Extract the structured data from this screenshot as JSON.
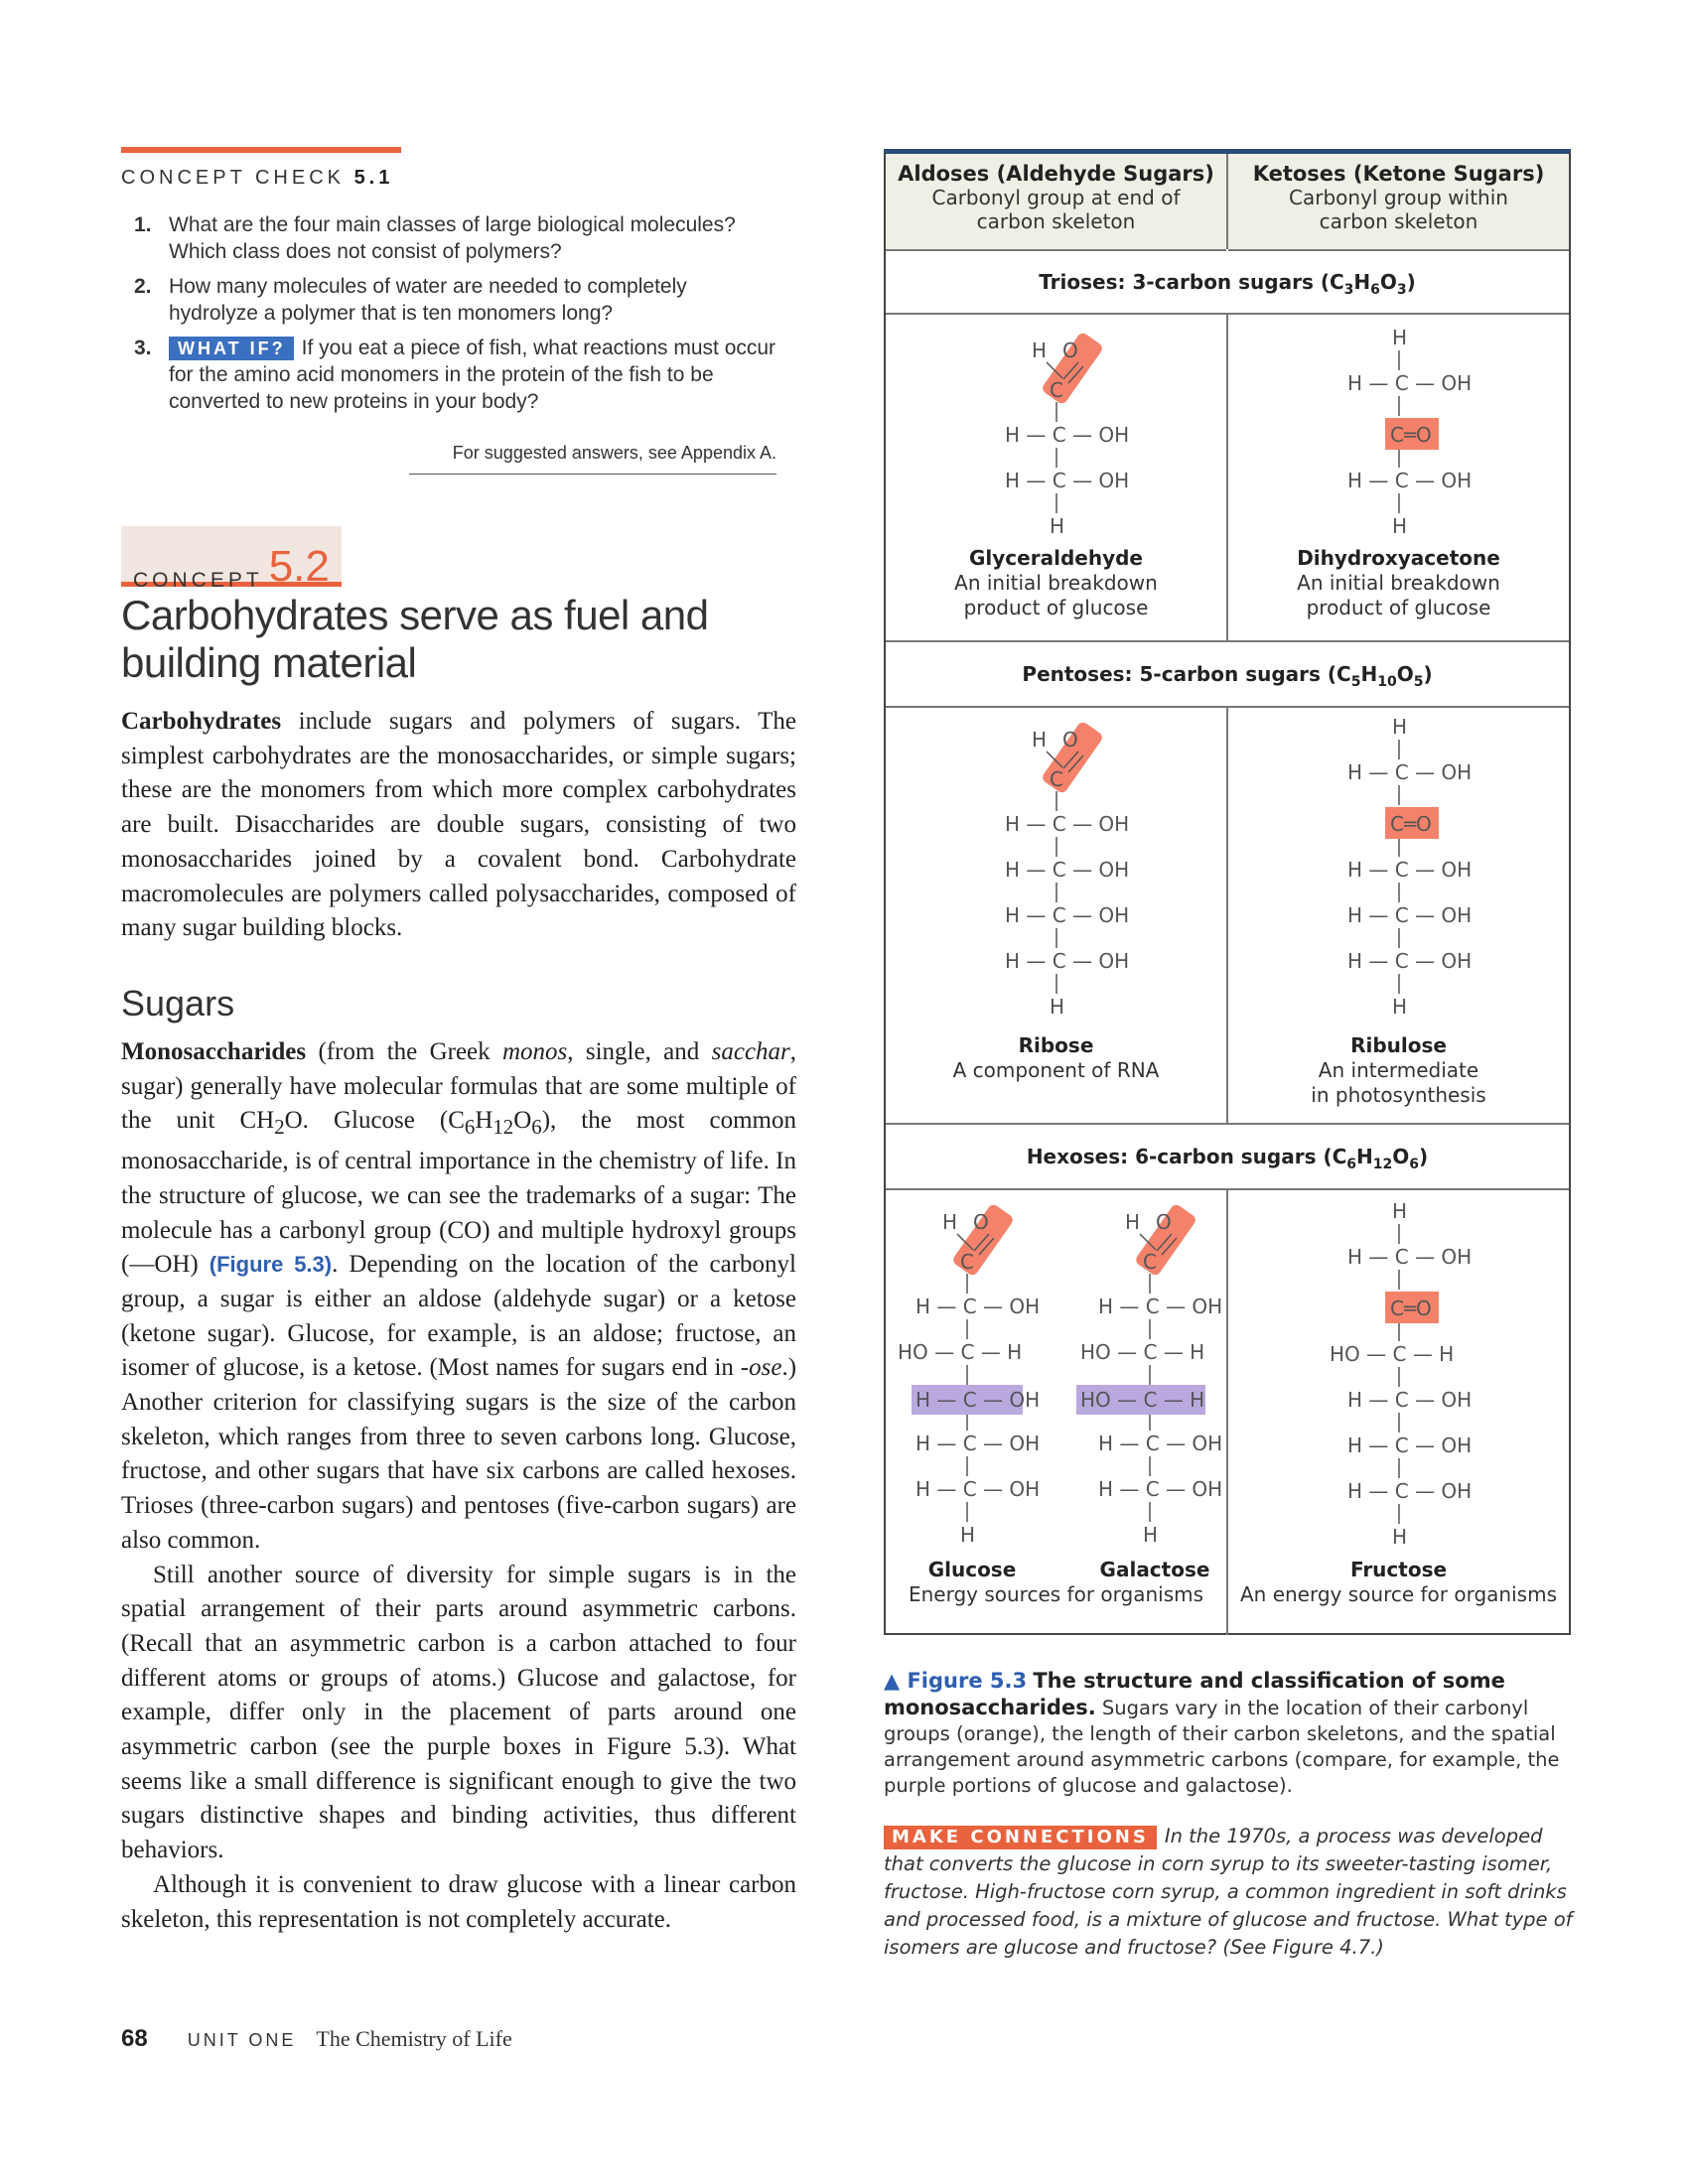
{
  "concept_check": {
    "label": "CONCEPT CHECK",
    "number": "5.1",
    "q1": "What are the four main classes of large biological molecules? Which class does not consist of polymers?",
    "q2": "How many molecules of water are needed to completely hydrolyze a polymer that is ten monomers long?",
    "q3_tag": "WHAT IF?",
    "q3": "If you eat a piece of fish, what reactions must occur for the amino acid monomers in the protein of the fish to be converted to new proteins in your body?",
    "answers": "For suggested answers, see Appendix A."
  },
  "concept": {
    "word": "CONCEPT",
    "number": "5.2",
    "heading_line1": "Carbohydrates serve as fuel and",
    "heading_line2": "building material"
  },
  "para1": {
    "term": "Carbohydrates",
    "text": "include sugars and polymers of sugars. The simplest carbohydrates are the monosaccharides, or simple sugars; these are the monomers from which more complex carbohydrates are built. Disaccharides are double sugars, consisting of two monosaccharides joined by a covalent bond. Carbohydrate macromolecules are polymers called polysaccharides, composed of many sugar building blocks."
  },
  "sugars_heading": "Sugars",
  "para2": {
    "term": "Monosaccharides",
    "a": "(from the Greek",
    "monos": "monos",
    "b": ", single, and",
    "sacchar": "sacchar",
    "c": ", sugar) generally have molecular formulas that are some multiple of the unit CH",
    "d": "O. Glucose (C",
    "e": "), the most common monosaccharide, is of central importance in the chemistry of life. In the structure of glucose, we can see the trademarks of a sugar: The molecule has a carbonyl group (CO) and multiple hydroxyl groups (—OH)",
    "figref": "(Figure 5.3)",
    "f": ". Depending on the location of the carbonyl group, a sugar is either an aldose (aldehyde sugar) or a ketose (ketone sugar). Glucose, for example, is an aldose; fructose, an isomer of glucose, is a ketose. (Most names for sugars end in",
    "ose": "-ose",
    "g": ".) Another criterion for classifying sugars is the size of the carbon skeleton, which ranges from three to seven carbons long. Glucose, fructose, and other sugars that have six carbons are called hexoses. Trioses (three-carbon sugars) and pentoses (five-carbon sugars) are also common."
  },
  "para3": "Still another source of diversity for simple sugars is in the spatial arrangement of their parts around asymmetric carbons. (Recall that an asymmetric carbon is a carbon attached to four different atoms or groups of atoms.) Glucose and galactose, for example, differ only in the placement of parts around one asymmetric carbon (see the purple boxes in Figure 5.3). What seems like a small difference is significant enough to give the two sugars distinctive shapes and binding activities, thus different behaviors.",
  "para4": "Although it is convenient to draw glucose with a linear carbon skeleton, this representation is not completely accurate.",
  "footer": {
    "page": "68",
    "unit": "UNIT ONE",
    "title": "The Chemistry of Life"
  },
  "figure": {
    "aldoses_title": "Aldoses (Aldehyde Sugars)",
    "aldoses_sub1": "Carbonyl group at end of",
    "aldoses_sub2": "carbon skeleton",
    "ketoses_title": "Ketoses (Ketone Sugars)",
    "ketoses_sub1": "Carbonyl group within",
    "ketoses_sub2": "carbon skeleton",
    "trioses": "Trioses: 3-carbon sugars (C",
    "pentoses": "Pentoses: 5-carbon sugars (C",
    "hexoses": "Hexoses: 6-carbon sugars (C",
    "glyceraldehyde": "Glyceraldehyde",
    "glyceraldehyde_d1": "An initial breakdown",
    "glyceraldehyde_d2": "product of glucose",
    "dihydroxyacetone": "Dihydroxyacetone",
    "dihydroxyacetone_d1": "An initial breakdown",
    "dihydroxyacetone_d2": "product of glucose",
    "ribose": "Ribose",
    "ribose_d": "A component of RNA",
    "ribulose": "Ribulose",
    "ribulose_d1": "An intermediate",
    "ribulose_d2": "in photosynthesis",
    "glucose": "Glucose",
    "galactose": "Galactose",
    "glu_gal_d": "Energy sources for organisms",
    "fructose": "Fructose",
    "fructose_d": "An energy source for organisms"
  },
  "caption": {
    "label": "▲ Figure 5.3",
    "title": "The structure and classification of some monosaccharides.",
    "text": "Sugars vary in the location of their carbonyl groups (orange), the length of their carbon skeletons, and the spatial arrangement around asymmetric carbons (compare, for example, the purple portions of glucose and galactose)."
  },
  "make_connections": {
    "tag": "MAKE CONNECTIONS",
    "text": "In the 1970s, a process was developed that converts the glucose in corn syrup to its sweeter-tasting isomer, fructose. High-fructose corn syrup, a common ingredient in soft drinks and processed food, is a mixture of glucose and fructose. What type of isomers are glucose and fructose? (See Figure 4.7.)"
  },
  "colors": {
    "accent": "#e8633d",
    "carbonyl": "#f4826b",
    "purple": "#b9a9de",
    "blue": "#2e5fb0"
  }
}
